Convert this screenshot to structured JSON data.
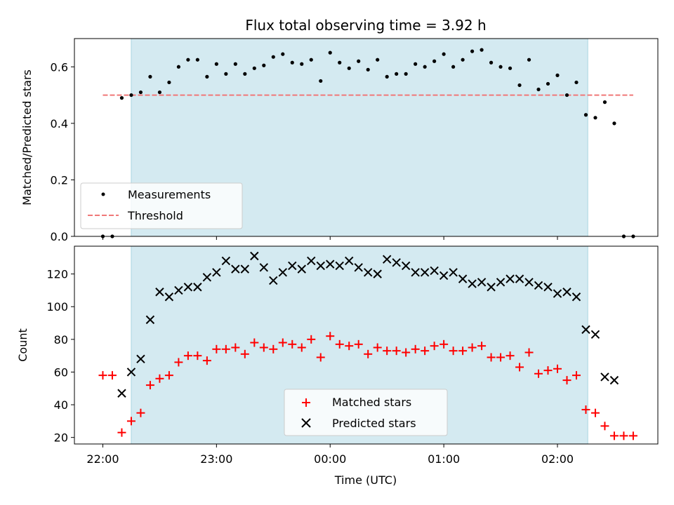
{
  "chart_data": {
    "type": "scatter",
    "title": "Flux total observing time = 3.92 h",
    "xlabel": "Time (UTC)",
    "x_tick_labels": [
      "22:00",
      "23:00",
      "00:00",
      "01:00",
      "02:00"
    ],
    "x_tick_values": [
      0,
      60,
      120,
      180,
      240
    ],
    "xlim": [
      -15,
      293
    ],
    "observing_window": [
      15,
      256
    ],
    "colors": {
      "window_fill": "#d4eaf1",
      "window_edge": "#a9d5e0",
      "measurements": "#000000",
      "threshold": "#f07878",
      "matched": "#ff0000",
      "predicted": "#000000"
    },
    "top_panel": {
      "ylabel": "Matched/Predicted stars",
      "ylim": [
        0,
        0.7
      ],
      "y_ticks": [
        0.0,
        0.2,
        0.4,
        0.6
      ],
      "y_tick_labels": [
        "0.0",
        "0.2",
        "0.4",
        "0.6"
      ],
      "threshold": 0.5,
      "threshold_x_range": [
        0,
        280
      ],
      "legend": {
        "position": "lower left",
        "measurements_label": "Measurements",
        "threshold_label": "Threshold"
      },
      "measurements": {
        "x": [
          0,
          5,
          10,
          15,
          20,
          25,
          30,
          35,
          40,
          45,
          50,
          55,
          60,
          65,
          70,
          75,
          80,
          85,
          90,
          95,
          100,
          105,
          110,
          115,
          120,
          125,
          130,
          135,
          140,
          145,
          150,
          155,
          160,
          165,
          170,
          175,
          180,
          185,
          190,
          195,
          200,
          205,
          210,
          215,
          220,
          225,
          230,
          235,
          240,
          245,
          250,
          255,
          260,
          265,
          270,
          275,
          280
        ],
        "y": [
          0.0,
          0.0,
          0.49,
          0.5,
          0.51,
          0.565,
          0.51,
          0.545,
          0.6,
          0.625,
          0.625,
          0.565,
          0.61,
          0.575,
          0.61,
          0.575,
          0.595,
          0.605,
          0.635,
          0.645,
          0.615,
          0.61,
          0.625,
          0.55,
          0.65,
          0.615,
          0.595,
          0.62,
          0.59,
          0.625,
          0.565,
          0.575,
          0.575,
          0.61,
          0.6,
          0.62,
          0.645,
          0.6,
          0.625,
          0.655,
          0.66,
          0.615,
          0.6,
          0.595,
          0.535,
          0.625,
          0.52,
          0.54,
          0.57,
          0.5,
          0.545,
          0.43,
          0.42,
          0.475,
          0.4,
          0.0,
          0.0
        ]
      }
    },
    "bottom_panel": {
      "ylabel": "Count",
      "ylim": [
        16,
        137
      ],
      "y_ticks": [
        20,
        40,
        60,
        80,
        100,
        120
      ],
      "y_tick_labels": [
        "20",
        "40",
        "60",
        "80",
        "100",
        "120"
      ],
      "legend": {
        "position": "lower center"
      },
      "series": [
        {
          "name": "Matched stars",
          "marker": "+",
          "x": [
            0,
            5,
            10,
            15,
            20,
            25,
            30,
            35,
            40,
            45,
            50,
            55,
            60,
            65,
            70,
            75,
            80,
            85,
            90,
            95,
            100,
            105,
            110,
            115,
            120,
            125,
            130,
            135,
            140,
            145,
            150,
            155,
            160,
            165,
            170,
            175,
            180,
            185,
            190,
            195,
            200,
            205,
            210,
            215,
            220,
            225,
            230,
            235,
            240,
            245,
            250,
            255,
            260,
            265,
            270,
            275,
            280
          ],
          "values": [
            58,
            58,
            23,
            30,
            35,
            52,
            56,
            58,
            66,
            70,
            70,
            67,
            74,
            74,
            75,
            71,
            78,
            75,
            74,
            78,
            77,
            75,
            80,
            69,
            82,
            77,
            76,
            77,
            71,
            75,
            73,
            73,
            72,
            74,
            73,
            76,
            77,
            73,
            73,
            75,
            76,
            69,
            69,
            70,
            63,
            72,
            59,
            61,
            62,
            55,
            58,
            37,
            35,
            27,
            21,
            21,
            21
          ]
        },
        {
          "name": "Predicted stars",
          "marker": "x",
          "x": [
            10,
            15,
            20,
            25,
            30,
            35,
            40,
            45,
            50,
            55,
            60,
            65,
            70,
            75,
            80,
            85,
            90,
            95,
            100,
            105,
            110,
            115,
            120,
            125,
            130,
            135,
            140,
            145,
            150,
            155,
            160,
            165,
            170,
            175,
            180,
            185,
            190,
            195,
            200,
            205,
            210,
            215,
            220,
            225,
            230,
            235,
            240,
            245,
            250,
            255,
            260,
            265,
            270
          ],
          "values": [
            47,
            60,
            68,
            92,
            109,
            106,
            110,
            112,
            112,
            118,
            121,
            128,
            123,
            123,
            131,
            124,
            116,
            121,
            125,
            123,
            128,
            125,
            126,
            125,
            128,
            124,
            121,
            120,
            129,
            127,
            125,
            121,
            121,
            122,
            119,
            121,
            117,
            114,
            115,
            112,
            115,
            117,
            117,
            115,
            113,
            112,
            108,
            109,
            106,
            86,
            83,
            57,
            55
          ]
        }
      ]
    }
  }
}
